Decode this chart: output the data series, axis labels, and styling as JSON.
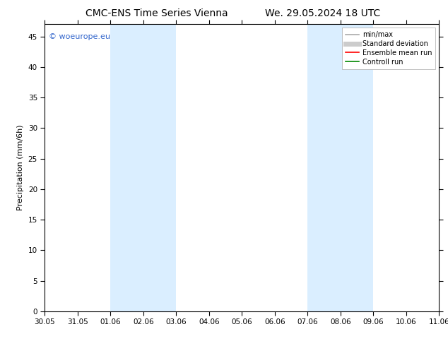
{
  "title_left": "CMC-ENS Time Series Vienna",
  "title_right": "We. 29.05.2024 18 UTC",
  "ylabel": "Precipitation (mm/6h)",
  "ylim": [
    0,
    47
  ],
  "yticks": [
    0,
    5,
    10,
    15,
    20,
    25,
    30,
    35,
    40,
    45
  ],
  "xtick_labels": [
    "30.05",
    "31.05",
    "01.06",
    "02.06",
    "03.06",
    "04.06",
    "05.06",
    "06.06",
    "07.06",
    "08.06",
    "09.06",
    "10.06",
    "11.06"
  ],
  "xtick_positions": [
    0,
    1,
    2,
    3,
    4,
    5,
    6,
    7,
    8,
    9,
    10,
    11,
    12
  ],
  "shaded_regions": [
    {
      "x_start": 2,
      "x_end": 4
    },
    {
      "x_start": 8,
      "x_end": 10
    }
  ],
  "shaded_color": "#daeeff",
  "watermark_text": "© woeurope.eu",
  "watermark_color": "#3366cc",
  "legend_entries": [
    {
      "label": "min/max",
      "color": "#aaaaaa",
      "lw": 1.2,
      "ls": "-"
    },
    {
      "label": "Standard deviation",
      "color": "#cccccc",
      "lw": 5,
      "ls": "-"
    },
    {
      "label": "Ensemble mean run",
      "color": "#ff0000",
      "lw": 1.2,
      "ls": "-"
    },
    {
      "label": "Controll run",
      "color": "#008800",
      "lw": 1.2,
      "ls": "-"
    }
  ],
  "background_color": "#ffffff",
  "title_fontsize": 10,
  "tick_fontsize": 7.5,
  "ylabel_fontsize": 8,
  "legend_fontsize": 7,
  "watermark_fontsize": 8
}
